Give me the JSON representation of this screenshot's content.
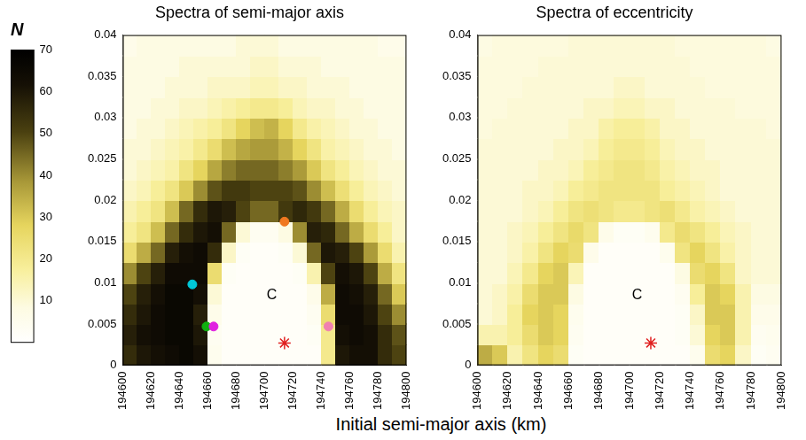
{
  "chart_data": [
    {
      "type": "heatmap",
      "title": "Spectra of semi-major axis",
      "xlim": [
        194600,
        194800
      ],
      "xticks": [
        194600,
        194620,
        194640,
        194660,
        194680,
        194700,
        194720,
        194740,
        194760,
        194780,
        194800
      ],
      "ylim": [
        0,
        0.04
      ],
      "yticks": [
        0,
        0.005,
        0.01,
        0.015,
        0.02,
        0.025,
        0.03,
        0.035,
        0.04
      ],
      "xbins": [
        194600,
        194610,
        194620,
        194630,
        194640,
        194650,
        194660,
        194670,
        194680,
        194690,
        194700,
        194710,
        194720,
        194730,
        194740,
        194750,
        194760,
        194770,
        194780,
        194790,
        194800
      ],
      "ybins": [
        0,
        0.0025,
        0.005,
        0.0075,
        0.01,
        0.0125,
        0.015,
        0.0175,
        0.02,
        0.0225,
        0.025,
        0.0275,
        0.03,
        0.0325,
        0.035,
        0.0375,
        0.04
      ],
      "cells": [
        [
          55,
          60,
          62,
          64,
          66,
          62,
          5,
          2,
          2,
          2,
          2,
          2,
          2,
          2,
          20,
          60,
          62,
          62,
          55,
          50
        ],
        [
          58,
          62,
          64,
          66,
          66,
          60,
          4,
          2,
          2,
          2,
          2,
          2,
          2,
          3,
          20,
          62,
          64,
          62,
          55,
          48
        ],
        [
          55,
          60,
          64,
          66,
          66,
          58,
          6,
          2,
          2,
          2,
          2,
          2,
          2,
          4,
          25,
          64,
          64,
          60,
          50,
          40
        ],
        [
          50,
          58,
          62,
          66,
          66,
          62,
          10,
          2,
          2,
          2,
          2,
          2,
          2,
          6,
          35,
          64,
          62,
          58,
          45,
          30
        ],
        [
          40,
          50,
          58,
          64,
          64,
          64,
          25,
          3,
          2,
          2,
          2,
          2,
          3,
          15,
          50,
          62,
          60,
          50,
          35,
          22
        ],
        [
          25,
          35,
          45,
          58,
          62,
          64,
          55,
          12,
          3,
          2,
          2,
          3,
          10,
          45,
          60,
          58,
          50,
          38,
          25,
          15
        ],
        [
          18,
          22,
          32,
          45,
          55,
          60,
          62,
          45,
          10,
          4,
          4,
          8,
          40,
          58,
          56,
          45,
          35,
          25,
          18,
          12
        ],
        [
          15,
          18,
          22,
          32,
          45,
          55,
          60,
          58,
          50,
          45,
          45,
          52,
          56,
          52,
          45,
          35,
          25,
          18,
          14,
          12
        ],
        [
          12,
          14,
          18,
          22,
          30,
          40,
          48,
          52,
          52,
          50,
          50,
          50,
          48,
          40,
          32,
          24,
          18,
          14,
          12,
          10
        ],
        [
          10,
          12,
          14,
          16,
          22,
          28,
          36,
          42,
          45,
          45,
          45,
          42,
          38,
          30,
          22,
          18,
          14,
          12,
          10,
          10
        ],
        [
          10,
          10,
          12,
          14,
          16,
          20,
          25,
          32,
          36,
          38,
          38,
          34,
          28,
          22,
          16,
          14,
          12,
          10,
          10,
          8
        ],
        [
          8,
          10,
          10,
          12,
          14,
          16,
          18,
          22,
          28,
          32,
          34,
          28,
          20,
          16,
          14,
          12,
          10,
          10,
          8,
          8
        ],
        [
          8,
          8,
          10,
          10,
          12,
          12,
          14,
          16,
          18,
          20,
          20,
          18,
          14,
          12,
          12,
          10,
          10,
          8,
          8,
          8
        ],
        [
          8,
          8,
          8,
          10,
          10,
          10,
          12,
          12,
          12,
          14,
          14,
          12,
          12,
          10,
          10,
          10,
          8,
          8,
          8,
          8
        ],
        [
          8,
          8,
          8,
          8,
          10,
          10,
          10,
          10,
          10,
          12,
          12,
          10,
          10,
          10,
          8,
          8,
          8,
          8,
          8,
          8
        ],
        [
          6,
          8,
          8,
          8,
          8,
          8,
          8,
          8,
          10,
          10,
          10,
          8,
          8,
          8,
          8,
          8,
          8,
          8,
          6,
          6
        ]
      ],
      "annotations": [
        {
          "text": "C",
          "x": 194705,
          "y": 0.0085
        }
      ],
      "points": [
        {
          "x": 194649,
          "y": 0.0098,
          "color": "#00c8d8",
          "marker": "circle"
        },
        {
          "x": 194659,
          "y": 0.0047,
          "color": "#10b010",
          "marker": "circle"
        },
        {
          "x": 194664,
          "y": 0.0047,
          "color": "#e020e0",
          "marker": "circle"
        },
        {
          "x": 194714,
          "y": 0.0174,
          "color": "#f07820",
          "marker": "circle"
        },
        {
          "x": 194745,
          "y": 0.0047,
          "color": "#f080b0",
          "marker": "circle"
        },
        {
          "x": 194714,
          "y": 0.0027,
          "color": "#e02020",
          "marker": "star"
        }
      ]
    },
    {
      "type": "heatmap",
      "title": "Spectra of eccentricity",
      "xlim": [
        194600,
        194800
      ],
      "xticks": [
        194600,
        194620,
        194640,
        194660,
        194680,
        194700,
        194720,
        194740,
        194760,
        194780,
        194800
      ],
      "ylim": [
        0,
        0.04
      ],
      "yticks": [
        0,
        0.005,
        0.01,
        0.015,
        0.02,
        0.025,
        0.03,
        0.035,
        0.04
      ],
      "xbins": [
        194600,
        194610,
        194620,
        194630,
        194640,
        194650,
        194660,
        194670,
        194680,
        194690,
        194700,
        194710,
        194720,
        194730,
        194740,
        194750,
        194760,
        194770,
        194780,
        194790,
        194800
      ],
      "ybins": [
        0,
        0.0025,
        0.005,
        0.0075,
        0.01,
        0.0125,
        0.015,
        0.0175,
        0.02,
        0.0225,
        0.025,
        0.0275,
        0.03,
        0.0325,
        0.035,
        0.0375,
        0.04
      ],
      "cells": [
        [
          35,
          30,
          15,
          22,
          28,
          25,
          3,
          2,
          2,
          2,
          2,
          2,
          2,
          2,
          5,
          25,
          28,
          12,
          3,
          4
        ],
        [
          15,
          15,
          18,
          25,
          30,
          28,
          4,
          2,
          2,
          2,
          2,
          2,
          2,
          3,
          10,
          28,
          30,
          15,
          4,
          5
        ],
        [
          10,
          12,
          18,
          28,
          30,
          28,
          5,
          2,
          2,
          2,
          2,
          2,
          2,
          3,
          12,
          30,
          30,
          15,
          6,
          6
        ],
        [
          10,
          12,
          16,
          25,
          30,
          30,
          8,
          2,
          2,
          2,
          2,
          2,
          2,
          4,
          18,
          30,
          28,
          15,
          8,
          8
        ],
        [
          10,
          10,
          14,
          20,
          28,
          30,
          14,
          2,
          2,
          2,
          2,
          2,
          2,
          8,
          25,
          28,
          22,
          12,
          10,
          10
        ],
        [
          10,
          10,
          12,
          16,
          22,
          28,
          25,
          6,
          2,
          2,
          2,
          2,
          5,
          22,
          28,
          22,
          16,
          12,
          10,
          10
        ],
        [
          10,
          10,
          12,
          14,
          18,
          22,
          26,
          22,
          6,
          3,
          3,
          5,
          20,
          25,
          22,
          18,
          14,
          12,
          10,
          10
        ],
        [
          10,
          10,
          10,
          12,
          14,
          18,
          22,
          24,
          22,
          20,
          20,
          22,
          24,
          20,
          16,
          14,
          12,
          10,
          10,
          10
        ],
        [
          10,
          10,
          10,
          12,
          12,
          14,
          18,
          20,
          22,
          22,
          22,
          22,
          18,
          16,
          14,
          12,
          10,
          10,
          10,
          10
        ],
        [
          10,
          10,
          10,
          10,
          12,
          12,
          14,
          18,
          20,
          22,
          22,
          20,
          16,
          14,
          12,
          12,
          10,
          10,
          10,
          10
        ],
        [
          10,
          10,
          10,
          10,
          10,
          12,
          12,
          14,
          18,
          20,
          20,
          18,
          14,
          12,
          12,
          10,
          10,
          10,
          10,
          10
        ],
        [
          9,
          10,
          10,
          10,
          10,
          10,
          12,
          12,
          16,
          18,
          18,
          16,
          12,
          12,
          10,
          10,
          10,
          10,
          10,
          9
        ],
        [
          9,
          9,
          10,
          10,
          10,
          10,
          10,
          12,
          12,
          14,
          14,
          12,
          12,
          10,
          10,
          10,
          10,
          9,
          9,
          9
        ],
        [
          9,
          9,
          9,
          10,
          10,
          10,
          10,
          10,
          10,
          12,
          12,
          10,
          10,
          10,
          10,
          9,
          9,
          9,
          9,
          9
        ],
        [
          9,
          9,
          9,
          9,
          10,
          10,
          10,
          10,
          10,
          10,
          10,
          10,
          10,
          10,
          9,
          9,
          9,
          9,
          9,
          9
        ],
        [
          8,
          9,
          9,
          9,
          9,
          9,
          10,
          10,
          10,
          10,
          10,
          10,
          10,
          9,
          9,
          9,
          9,
          9,
          9,
          8
        ]
      ],
      "annotations": [
        {
          "text": "C",
          "x": 194705,
          "y": 0.0085
        }
      ],
      "points": [
        {
          "x": 194714,
          "y": 0.0027,
          "color": "#e02020",
          "marker": "star"
        }
      ]
    }
  ],
  "xlabel": "Initial semi-major axis (km)",
  "colorbar": {
    "label": "N",
    "range": [
      0,
      70
    ],
    "ticks": [
      10,
      20,
      30,
      40,
      50,
      60,
      70
    ]
  }
}
